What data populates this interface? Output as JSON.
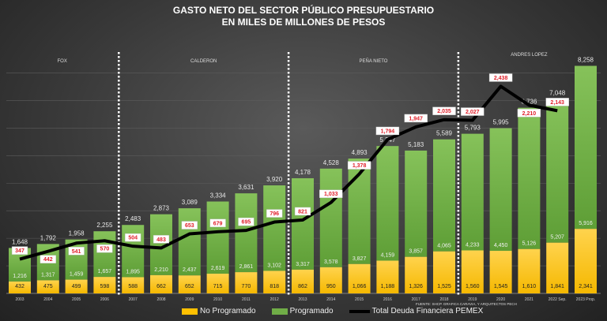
{
  "chart_data": {
    "type": "bar",
    "title": "GASTO NETO DEL SECTOR PÚBLICO PRESUPUESTARIO",
    "subtitle": "EN MILES DE MILLONES DE PESOS",
    "categories": [
      "2003",
      "2004",
      "2005",
      "2006",
      "2007",
      "2008",
      "2009",
      "2010",
      "2011",
      "2012",
      "2013",
      "2014",
      "2015",
      "2016",
      "2017",
      "2018",
      "2019",
      "2020",
      "2021",
      "2022 Sep.",
      "2023 Prop."
    ],
    "stacked": true,
    "series": [
      {
        "name": "No Programado",
        "type": "bar",
        "color": "#ffc000",
        "values": [
          432,
          475,
          499,
          598,
          588,
          662,
          652,
          715,
          770,
          818,
          862,
          950,
          1066,
          1188,
          1326,
          1525,
          1560,
          1545,
          1610,
          1841,
          2341
        ]
      },
      {
        "name": "Programado",
        "type": "bar",
        "color": "#70ad47",
        "values": [
          1216,
          1317,
          1459,
          1657,
          1895,
          2210,
          2437,
          2619,
          2861,
          3102,
          3317,
          3578,
          3827,
          4159,
          3857,
          4065,
          4233,
          4450,
          5126,
          5207,
          5916
        ]
      },
      {
        "name": "Total Deuda Financiera PEMEX",
        "type": "line",
        "color": "#000000",
        "axis": "secondary",
        "values": [
          347,
          442,
          541,
          570,
          504,
          483,
          653,
          679,
          695,
          796,
          821,
          1033,
          1378,
          1794,
          1947,
          2035,
          2027,
          2438,
          2210,
          2143,
          null
        ]
      }
    ],
    "totals": [
      1648,
      1792,
      1958,
      2255,
      2483,
      2873,
      3089,
      3334,
      3631,
      3920,
      4178,
      4528,
      4893,
      5347,
      5183,
      5589,
      5793,
      5995,
      6736,
      7048,
      8258
    ],
    "ylim": [
      0,
      8300
    ],
    "y2lim": [
      -67,
      2700
    ],
    "grid": true,
    "legend": "bottom",
    "periods": [
      {
        "label": "FOX",
        "from": "2003",
        "to": "2006"
      },
      {
        "label": "CALDERON",
        "from": "2007",
        "to": "2012"
      },
      {
        "label": "PEÑA NIETO",
        "from": "2013",
        "to": "2018"
      },
      {
        "label": "ANDRES LOPEZ",
        "from": "2019",
        "to": "2023 Prop."
      }
    ],
    "source": "FUENTE: SHCP. GRAFICA CARAVIA, Y ARQUITECTOS PECH"
  }
}
